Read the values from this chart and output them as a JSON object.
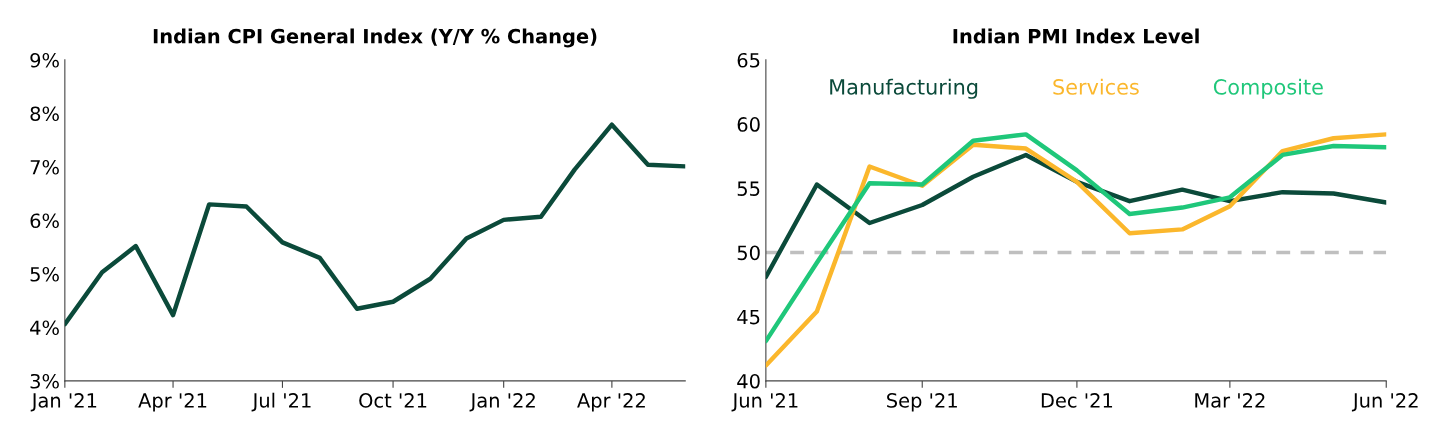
{
  "chart_data": [
    {
      "type": "line",
      "title": "Indian CPI General Index (Y/Y % Change)",
      "x": [
        "2021-01",
        "2021-02",
        "2021-03",
        "2021-04",
        "2021-05",
        "2021-06",
        "2021-07",
        "2021-08",
        "2021-09",
        "2021-10",
        "2021-11",
        "2021-12",
        "2022-01",
        "2022-02",
        "2022-03",
        "2022-04",
        "2022-05",
        "2022-06"
      ],
      "series": [
        {
          "color": "#0b4a3a",
          "values": [
            4.06,
            5.03,
            5.52,
            4.23,
            6.3,
            6.26,
            5.59,
            5.3,
            4.35,
            4.48,
            4.91,
            5.66,
            6.01,
            6.07,
            6.95,
            7.79,
            7.04,
            7.01
          ]
        }
      ],
      "xlim": [
        "2021-01",
        "2022-06"
      ],
      "xticks": [
        {
          "value": "2021-01",
          "label": "Jan '21"
        },
        {
          "value": "2021-04",
          "label": "Apr '21"
        },
        {
          "value": "2021-07",
          "label": "Jul '21"
        },
        {
          "value": "2021-10",
          "label": "Oct '21"
        },
        {
          "value": "2022-01",
          "label": "Jan '22"
        },
        {
          "value": "2022-04",
          "label": "Apr '22"
        }
      ],
      "ylim": [
        3,
        9
      ],
      "yticks": [
        {
          "value": 3,
          "label": "3%"
        },
        {
          "value": 4,
          "label": "4%"
        },
        {
          "value": 5,
          "label": "5%"
        },
        {
          "value": 6,
          "label": "6%"
        },
        {
          "value": 7,
          "label": "7%"
        },
        {
          "value": 8,
          "label": "8%"
        },
        {
          "value": 9,
          "label": "9%"
        }
      ],
      "grid": false,
      "legend": false,
      "marker": "none",
      "line_style": "solid"
    },
    {
      "type": "line",
      "title": "Indian PMI Index Level",
      "x": [
        "2021-06",
        "2021-07",
        "2021-08",
        "2021-09",
        "2021-10",
        "2021-11",
        "2021-12",
        "2022-01",
        "2022-02",
        "2022-03",
        "2022-04",
        "2022-05",
        "2022-06"
      ],
      "series": [
        {
          "name": "Manufacturing",
          "color": "#0b4a3a",
          "values": [
            48.1,
            55.3,
            52.3,
            53.7,
            55.9,
            57.6,
            55.5,
            54.0,
            54.9,
            54.0,
            54.7,
            54.6,
            53.9
          ]
        },
        {
          "name": "Services",
          "color": "#fbb72c",
          "values": [
            41.2,
            45.4,
            56.7,
            55.2,
            58.4,
            58.1,
            55.5,
            51.5,
            51.8,
            53.6,
            57.9,
            58.9,
            59.2
          ]
        },
        {
          "name": "Composite",
          "color": "#1fc77a",
          "values": [
            43.1,
            49.2,
            55.4,
            55.3,
            58.7,
            59.2,
            56.4,
            53.0,
            53.5,
            54.3,
            57.6,
            58.3,
            58.2
          ]
        }
      ],
      "xlim": [
        "2021-06",
        "2022-06"
      ],
      "xticks": [
        {
          "value": "2021-06",
          "label": "Jun '21"
        },
        {
          "value": "2021-09",
          "label": "Sep '21"
        },
        {
          "value": "2021-12",
          "label": "Dec '21"
        },
        {
          "value": "2022-03",
          "label": "Mar '22"
        },
        {
          "value": "2022-06",
          "label": "Jun '22"
        }
      ],
      "ylim": [
        40,
        65
      ],
      "yticks": [
        40,
        45,
        50,
        55,
        60,
        65
      ],
      "ref_lines": [
        {
          "axis": "y",
          "value": 50,
          "color": "#bfbfbf",
          "line_style": "dashed"
        }
      ],
      "grid": false,
      "legend": "top",
      "marker": "none",
      "line_style": "solid"
    }
  ]
}
